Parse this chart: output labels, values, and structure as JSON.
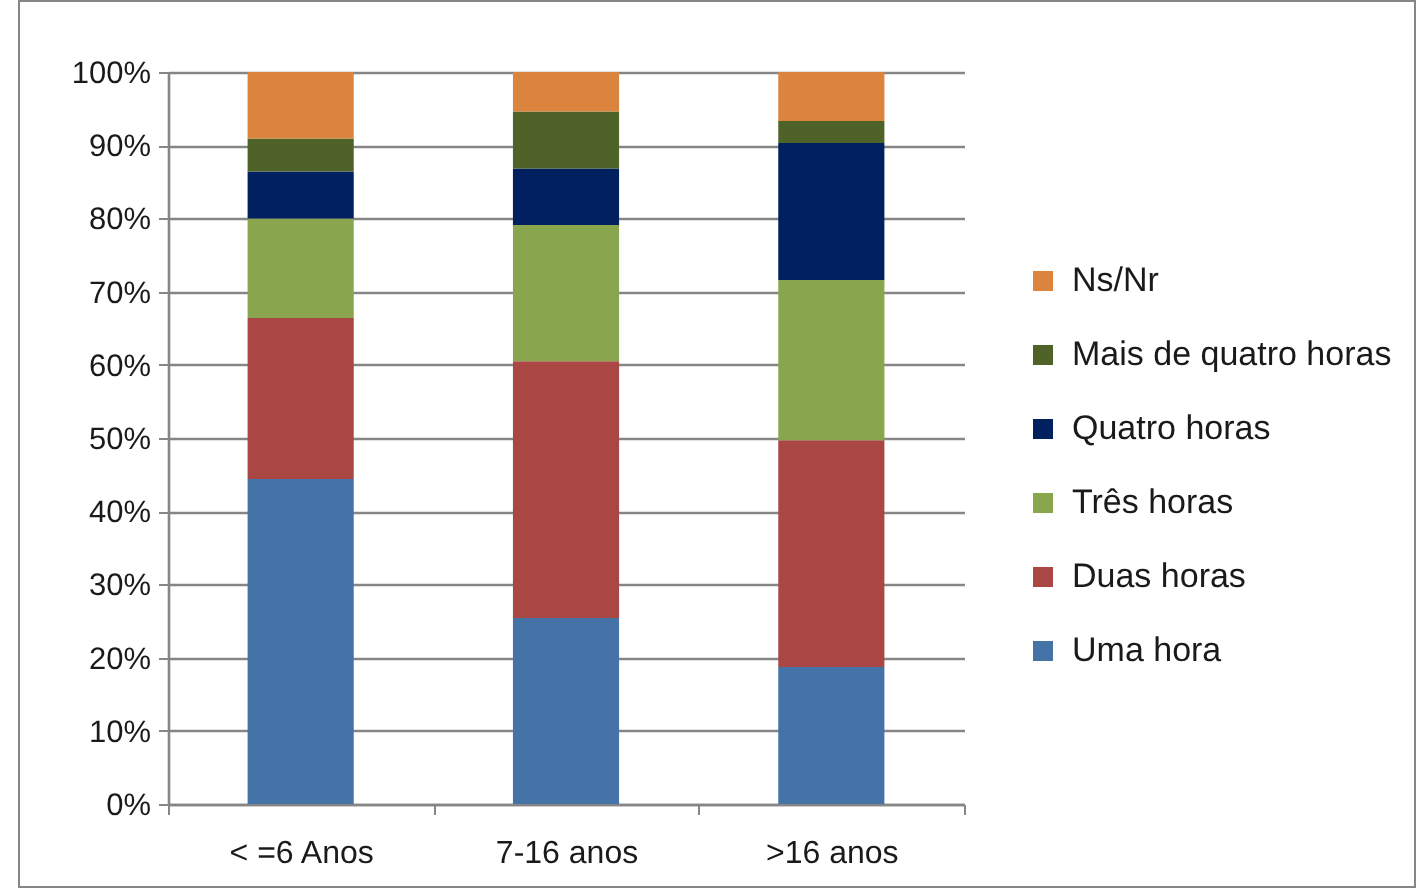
{
  "chart_data": {
    "type": "bar",
    "stacked": true,
    "categories": [
      "< =6 Anos",
      "7-16 anos",
      ">16 anos"
    ],
    "series": [
      {
        "name": "Uma hora",
        "color": "#4572a7",
        "values": [
          44.4,
          25.4,
          18.7
        ]
      },
      {
        "name": "Duas horas",
        "color": "#aa4643",
        "values": [
          22.0,
          35.1,
          31.0
        ]
      },
      {
        "name": "Três horas",
        "color": "#89a54e",
        "values": [
          13.6,
          18.6,
          21.9
        ]
      },
      {
        "name": "Quatro horas",
        "color": "#002060",
        "values": [
          6.4,
          7.7,
          18.7
        ]
      },
      {
        "name": "Mais de quatro horas",
        "color": "#4f6228",
        "values": [
          4.5,
          7.8,
          3.0
        ]
      },
      {
        "name": "Ns/Nr",
        "color": "#db843d",
        "values": [
          9.1,
          5.4,
          6.7
        ]
      }
    ],
    "ylim": [
      0,
      100
    ],
    "yticks": [
      {
        "value": 0,
        "label": "0%"
      },
      {
        "value": 10,
        "label": "10%"
      },
      {
        "value": 20,
        "label": "20%"
      },
      {
        "value": 30,
        "label": "30%"
      },
      {
        "value": 40,
        "label": "40%"
      },
      {
        "value": 50,
        "label": "50%"
      },
      {
        "value": 60,
        "label": "60%"
      },
      {
        "value": 70,
        "label": "70%"
      },
      {
        "value": 80,
        "label": "80%"
      },
      {
        "value": 90,
        "label": "90%"
      },
      {
        "value": 100,
        "label": "100%"
      }
    ],
    "grid": "y",
    "legend": "right"
  }
}
